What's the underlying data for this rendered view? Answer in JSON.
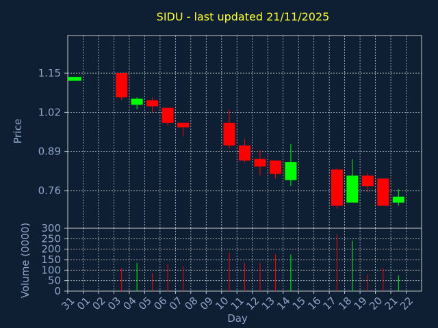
{
  "chart_data": {
    "type": "candlestick",
    "title": "SIDU - last updated 21/11/2025",
    "xlabel": "Day",
    "price_ylabel": "Price",
    "volume_ylabel": "Volume (0000)",
    "price_ticks": [
      "1.15",
      "1.02",
      "0.89",
      "0.76"
    ],
    "price_tick_values": [
      1.15,
      1.02,
      0.89,
      0.76
    ],
    "price_ylim": [
      0.635,
      1.275
    ],
    "volume_ticks": [
      "300",
      "250",
      "200",
      "150",
      "100",
      "50",
      "0"
    ],
    "volume_tick_values": [
      300,
      250,
      200,
      150,
      100,
      50,
      0
    ],
    "volume_ylim": [
      0,
      300
    ],
    "x_labels": [
      "31",
      "01",
      "02",
      "03",
      "04",
      "05",
      "06",
      "07",
      "08",
      "09",
      "10",
      "11",
      "12",
      "13",
      "14",
      "15",
      "16",
      "17",
      "18",
      "19",
      "20",
      "21",
      "22"
    ],
    "grid": true,
    "colors": {
      "up": "#00ff00",
      "down": "#ff0000",
      "background": "#0e1e33",
      "grid": "#c8c8c8",
      "text": "#8fa6c8",
      "title": "#ffff33"
    },
    "candles": [
      {
        "day": "31",
        "open": 1.125,
        "close": 1.137,
        "high": 1.137,
        "low": 1.125,
        "volume": 0
      },
      {
        "day": "03",
        "open": 1.15,
        "close": 1.07,
        "high": 1.15,
        "low": 1.06,
        "volume": 110
      },
      {
        "day": "04",
        "open": 1.045,
        "close": 1.065,
        "high": 1.07,
        "low": 1.03,
        "volume": 135
      },
      {
        "day": "05",
        "open": 1.06,
        "close": 1.04,
        "high": 1.07,
        "low": 1.02,
        "volume": 85
      },
      {
        "day": "06",
        "open": 1.035,
        "close": 0.985,
        "high": 1.035,
        "low": 0.975,
        "volume": 130
      },
      {
        "day": "07",
        "open": 0.985,
        "close": 0.97,
        "high": 0.985,
        "low": 0.94,
        "volume": 120
      },
      {
        "day": "10",
        "open": 0.985,
        "close": 0.91,
        "high": 1.03,
        "low": 0.9,
        "volume": 185
      },
      {
        "day": "11",
        "open": 0.91,
        "close": 0.86,
        "high": 0.93,
        "low": 0.855,
        "volume": 135
      },
      {
        "day": "12",
        "open": 0.865,
        "close": 0.84,
        "high": 0.895,
        "low": 0.81,
        "volume": 135
      },
      {
        "day": "13",
        "open": 0.86,
        "close": 0.815,
        "high": 0.86,
        "low": 0.8,
        "volume": 175
      },
      {
        "day": "14",
        "open": 0.795,
        "close": 0.855,
        "high": 0.915,
        "low": 0.775,
        "volume": 175
      },
      {
        "day": "17",
        "open": 0.83,
        "close": 0.71,
        "high": 0.835,
        "low": 0.7,
        "volume": 270
      },
      {
        "day": "18",
        "open": 0.72,
        "close": 0.81,
        "high": 0.865,
        "low": 0.72,
        "volume": 240
      },
      {
        "day": "19",
        "open": 0.81,
        "close": 0.775,
        "high": 0.82,
        "low": 0.755,
        "volume": 80
      },
      {
        "day": "20",
        "open": 0.8,
        "close": 0.71,
        "high": 0.8,
        "low": 0.71,
        "volume": 110
      },
      {
        "day": "21",
        "open": 0.72,
        "close": 0.74,
        "high": 0.765,
        "low": 0.71,
        "volume": 75
      }
    ]
  }
}
